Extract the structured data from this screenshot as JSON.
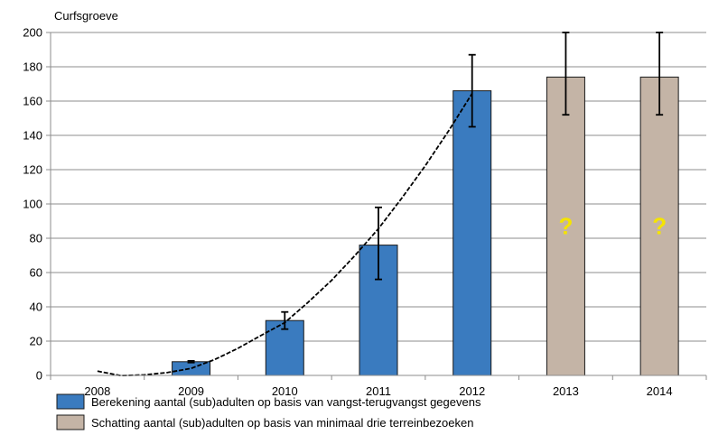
{
  "chart_data": {
    "type": "bar",
    "title": "Curfsgroeve",
    "categories": [
      "2008",
      "2009",
      "2010",
      "2011",
      "2012",
      "2013",
      "2014"
    ],
    "ylim": [
      0,
      200
    ],
    "yticks": [
      0,
      20,
      40,
      60,
      80,
      100,
      120,
      140,
      160,
      180,
      200
    ],
    "grid": true,
    "legend_position": "bottom-left",
    "series": [
      {
        "name": "Berekening aantal (sub)adulten op basis van vangst-terugvangst gegevens",
        "color": "#3A7BBF",
        "values": [
          null,
          8,
          32,
          76,
          166,
          null,
          null
        ],
        "err_low": [
          null,
          7.5,
          27,
          56,
          145,
          null,
          null
        ],
        "err_high": [
          null,
          8.5,
          37,
          98,
          187,
          null,
          null
        ]
      },
      {
        "name": "Schatting aantal (sub)adulten op basis van minimaal drie terreinbezoeken",
        "color": "#C4B4A6",
        "values": [
          null,
          null,
          null,
          null,
          null,
          174,
          174
        ],
        "err_low": [
          null,
          null,
          null,
          null,
          null,
          152,
          152
        ],
        "err_high": [
          null,
          null,
          null,
          null,
          null,
          200,
          200
        ],
        "bar_labels": [
          null,
          null,
          null,
          null,
          null,
          "?",
          "?"
        ]
      }
    ],
    "trendline": {
      "type": "polynomial",
      "x": [
        0,
        0.25,
        0.5,
        0.75,
        1,
        1.25,
        1.5,
        1.75,
        2,
        2.25,
        2.5,
        2.75,
        3,
        3.25,
        3.5,
        3.75,
        4
      ],
      "y": [
        2.5,
        -0.1,
        0.3,
        1.7,
        4.1,
        9.2,
        15.8,
        23.4,
        30.8,
        42.7,
        55.4,
        70.0,
        85.6,
        103.4,
        122.3,
        142.7,
        164.4
      ]
    },
    "question_mark_color": "#F5E400"
  }
}
